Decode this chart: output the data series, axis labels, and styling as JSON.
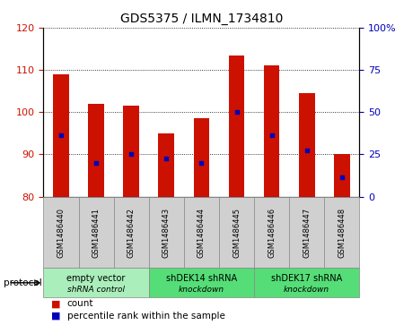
{
  "title": "GDS5375 / ILMN_1734810",
  "samples": [
    "GSM1486440",
    "GSM1486441",
    "GSM1486442",
    "GSM1486443",
    "GSM1486444",
    "GSM1486445",
    "GSM1486446",
    "GSM1486447",
    "GSM1486448"
  ],
  "bar_tops": [
    109,
    102,
    101.5,
    95,
    98.5,
    113.5,
    111,
    104.5,
    90
  ],
  "bar_bottom": 80,
  "blue_dot_values": [
    94.5,
    88,
    90,
    89,
    88,
    100,
    94.5,
    91,
    84.5
  ],
  "ylim_left": [
    80,
    120
  ],
  "ylim_right": [
    0,
    100
  ],
  "yticks_left": [
    80,
    90,
    100,
    110,
    120
  ],
  "yticks_right": [
    0,
    25,
    50,
    75,
    100
  ],
  "bar_color": "#cc1100",
  "dot_color": "#0000bb",
  "proto_groups": [
    {
      "start": 0,
      "end": 2,
      "label": "empty vector\nshRNA control",
      "color": "#aaeebb"
    },
    {
      "start": 3,
      "end": 5,
      "label": "shDEK14 shRNA\nknockdown",
      "color": "#55dd77"
    },
    {
      "start": 6,
      "end": 8,
      "label": "shDEK17 shRNA\nknockdown",
      "color": "#55dd77"
    }
  ],
  "protocol_label": "protocol",
  "legend_count_label": "count",
  "legend_pct_label": "percentile rank within the sample",
  "title_fontsize": 10,
  "tick_fontsize": 8,
  "sample_fontsize": 6,
  "proto_fontsize": 7,
  "legend_fontsize": 7.5,
  "bar_width": 0.45
}
